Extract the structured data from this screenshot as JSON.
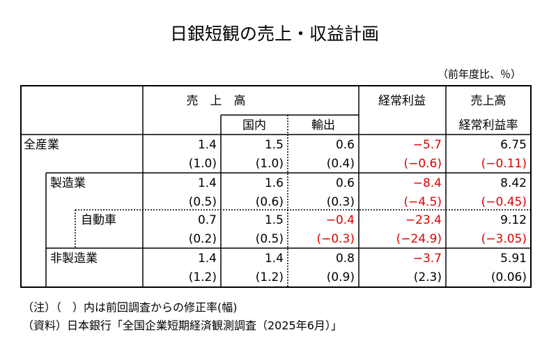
{
  "title": "日銀短観の売上・収益計画",
  "unit_note": "（前年度比、％）",
  "header": {
    "sales": "売　上　高",
    "domestic": "国内",
    "export": "輸出",
    "profit": "経常利益",
    "margin_top": "売上高",
    "margin_bottom": "経常利益率"
  },
  "rows": [
    {
      "label": "全産業",
      "values": [
        "1.4",
        "1.5",
        "0.6",
        "−5.7",
        "6.75"
      ],
      "revisions": [
        "(1.0)",
        "(1.0)",
        "(0.4)",
        "(−0.6)",
        "(−0.11)"
      ]
    },
    {
      "label": "製造業",
      "values": [
        "1.4",
        "1.6",
        "0.6",
        "−8.4",
        "8.42"
      ],
      "revisions": [
        "(0.5)",
        "(0.6)",
        "(0.3)",
        "(−4.5)",
        "(−0.45)"
      ]
    },
    {
      "label": "自動車",
      "values": [
        "0.7",
        "1.5",
        "−0.4",
        "−23.4",
        "9.12"
      ],
      "revisions": [
        "(0.2)",
        "(0.5)",
        "(−0.3)",
        "(−24.9)",
        "(−3.05)"
      ]
    },
    {
      "label": "非製造業",
      "values": [
        "1.4",
        "1.4",
        "0.8",
        "−3.7",
        "5.91"
      ],
      "revisions": [
        "(1.2)",
        "(1.2)",
        "(0.9)",
        "(2.3)",
        "(0.06)"
      ]
    }
  ],
  "notes": [
    "（注）（　）内は前回調査からの修正率(幅)",
    "（資料）日本銀行「全国企業短期経済観測調査（2025年6月）」"
  ]
}
